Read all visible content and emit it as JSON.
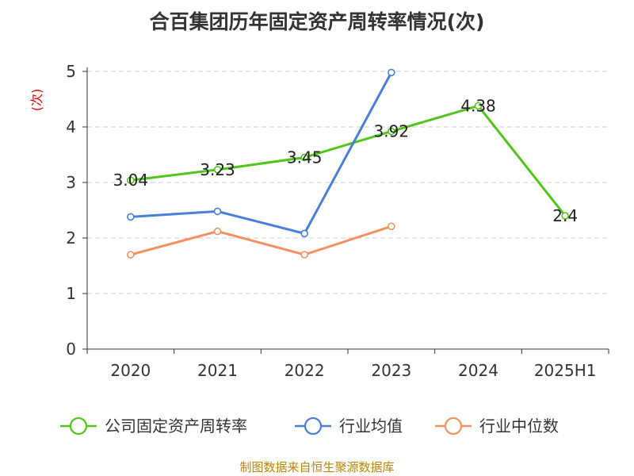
{
  "chart_data": {
    "type": "line",
    "title": "合百集团历年固定资产周转率情况(次)",
    "ylabel": "(次)",
    "xlabel": "",
    "categories": [
      "2020",
      "2021",
      "2022",
      "2023",
      "2024",
      "2025H1"
    ],
    "ylim": [
      0,
      5
    ],
    "yticks": [
      0,
      1,
      2,
      3,
      4,
      5
    ],
    "grid": true,
    "legend_position": "bottom",
    "series": [
      {
        "name": "公司固定资产周转率",
        "color": "#52c41a",
        "values": [
          3.04,
          3.23,
          3.45,
          3.92,
          4.38,
          2.4
        ],
        "labels": [
          "3.04",
          "3.23",
          "3.45",
          "3.92",
          "4.38",
          "2.4"
        ]
      },
      {
        "name": "行业均值",
        "color": "#4a7fd8",
        "values": [
          2.38,
          2.48,
          2.08,
          4.98,
          null,
          null
        ]
      },
      {
        "name": "行业中位数",
        "color": "#f39060",
        "values": [
          1.7,
          2.12,
          1.7,
          2.21,
          null,
          null
        ]
      }
    ]
  },
  "source": "制图数据来自恒生聚源数据库"
}
